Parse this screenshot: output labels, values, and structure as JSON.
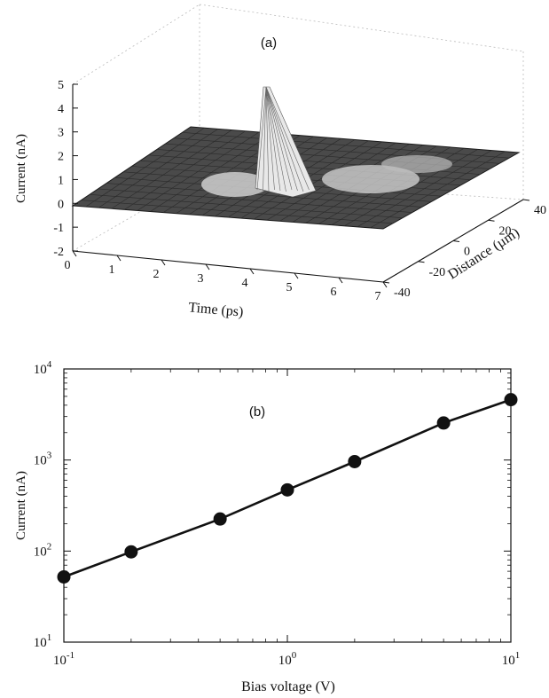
{
  "figure": {
    "panel_a": {
      "label": "(a)",
      "xlabel": "Time (ps)",
      "ylabel": "Distance (µm)",
      "zlabel": "Current (nA)",
      "x_ticks": [
        "0",
        "1",
        "2",
        "3",
        "4",
        "5",
        "6",
        "7"
      ],
      "y_ticks": [
        "-40",
        "-20",
        "0",
        "20",
        "40"
      ],
      "z_ticks": [
        "5",
        "4",
        "3",
        "2",
        "1",
        "0",
        "-1",
        "-2"
      ]
    },
    "panel_b": {
      "label": "(b)",
      "xlabel": "Bias voltage (V)",
      "ylabel": "Current (nA)",
      "x_ticks": [
        {
          "base": "10",
          "exp": "-1"
        },
        {
          "base": "10",
          "exp": "0"
        },
        {
          "base": "10",
          "exp": "1"
        }
      ],
      "y_ticks": [
        {
          "base": "10",
          "exp": "1"
        },
        {
          "base": "10",
          "exp": "2"
        },
        {
          "base": "10",
          "exp": "3"
        },
        {
          "base": "10",
          "exp": "4"
        }
      ]
    }
  },
  "chart_data": [
    {
      "type": "surface",
      "title": "(a)",
      "xlabel": "Time (ps)",
      "ylabel": "Distance (µm)",
      "zlabel": "Current (nA)",
      "xlim": [
        0,
        7
      ],
      "ylim": [
        -40,
        40
      ],
      "zlim": [
        -2,
        5
      ],
      "peak": {
        "time": 3.3,
        "distance": 0,
        "current": 4.9
      },
      "grid": true
    },
    {
      "type": "line",
      "title": "(b)",
      "xlabel": "Bias voltage (V)",
      "ylabel": "Current (nA)",
      "xscale": "log",
      "yscale": "log",
      "xlim": [
        0.1,
        10
      ],
      "ylim": [
        10,
        10000
      ],
      "series": [
        {
          "x": [
            0.1,
            0.2,
            0.5,
            1,
            2,
            5,
            10
          ],
          "y": [
            52,
            98,
            225,
            470,
            960,
            2550,
            4600
          ],
          "marker": "filled-circle",
          "color": "#111111"
        }
      ]
    }
  ]
}
